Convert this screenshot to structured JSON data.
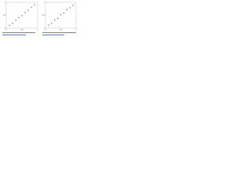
{
  "chart_data": [
    {
      "type": "scatter",
      "x": [
        0.1,
        0.2,
        0.3,
        0.4,
        0.5,
        0.6,
        0.7,
        0.8,
        0.9
      ],
      "series": [
        {
          "color": "#2e7d32",
          "values": [
            0.11,
            0.19,
            0.31,
            0.41,
            0.49,
            0.61,
            0.69,
            0.81,
            0.9
          ]
        }
      ],
      "xlim": [
        0,
        1
      ],
      "ylim": [
        0,
        1
      ],
      "xticks": [
        0,
        0.5,
        1
      ],
      "yticks": [
        0,
        0.5,
        1
      ]
    },
    {
      "type": "scatter",
      "x": [
        0.1,
        0.2,
        0.3,
        0.4,
        0.5,
        0.6,
        0.7,
        0.8,
        0.9
      ],
      "series": [
        {
          "color": "#c62828",
          "values": [
            0.12,
            0.18,
            0.32,
            0.38,
            0.52,
            0.58,
            0.72,
            0.79,
            0.88
          ]
        }
      ],
      "xlim": [
        0,
        1
      ],
      "ylim": [
        0,
        1
      ],
      "xticks": [
        0,
        0.5,
        1
      ],
      "yticks": [
        0,
        0.5,
        1
      ]
    }
  ]
}
